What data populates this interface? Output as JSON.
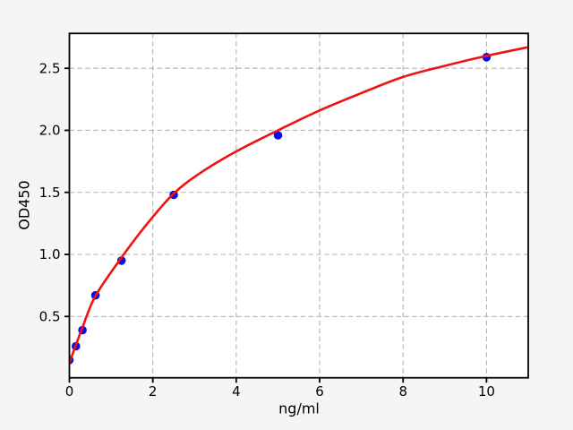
{
  "figure": {
    "background_color": "#f5f5f5",
    "plot_background_color": "#ffffff",
    "spine_color": "#000000",
    "grid_color": "#b3b3b3",
    "text_color": "#000000"
  },
  "chart_data": {
    "type": "scatter",
    "title": "",
    "xlabel": "ng/ml",
    "ylabel": "OD450",
    "xlim": [
      0,
      11
    ],
    "ylim": [
      0.006,
      2.781
    ],
    "grid": true,
    "grid_style": "dashed",
    "legend": false,
    "x_ticks": [
      0,
      2,
      4,
      6,
      8,
      10
    ],
    "x_tick_labels": [
      "0",
      "2",
      "4",
      "6",
      "8",
      "10"
    ],
    "y_ticks": [
      0.5,
      1.0,
      1.5,
      2.0,
      2.5
    ],
    "y_tick_labels": [
      "0.5",
      "1.0",
      "1.5",
      "2.0",
      "2.5"
    ],
    "series": [
      {
        "name": "standard-points",
        "type": "scatter",
        "color": "#0d0de8",
        "marker": "circle",
        "points": [
          [
            0,
            0.15
          ],
          [
            0.156,
            0.26
          ],
          [
            0.3125,
            0.39
          ],
          [
            0.625,
            0.67
          ],
          [
            1.25,
            0.95
          ],
          [
            2.5,
            1.48
          ],
          [
            5,
            1.96
          ],
          [
            10,
            2.59
          ]
        ]
      },
      {
        "name": "fit-curve",
        "type": "line",
        "color": "#ee1414",
        "points": [
          [
            0,
            0.125
          ],
          [
            0.156,
            0.27
          ],
          [
            0.3125,
            0.41
          ],
          [
            0.625,
            0.665
          ],
          [
            1.25,
            0.975
          ],
          [
            1.8,
            1.22
          ],
          [
            2.5,
            1.49
          ],
          [
            3.2,
            1.67
          ],
          [
            4,
            1.83
          ],
          [
            5,
            2.0
          ],
          [
            6,
            2.16
          ],
          [
            7,
            2.3
          ],
          [
            8,
            2.43
          ],
          [
            9,
            2.52
          ],
          [
            10,
            2.6
          ],
          [
            11,
            2.67
          ]
        ]
      }
    ]
  }
}
